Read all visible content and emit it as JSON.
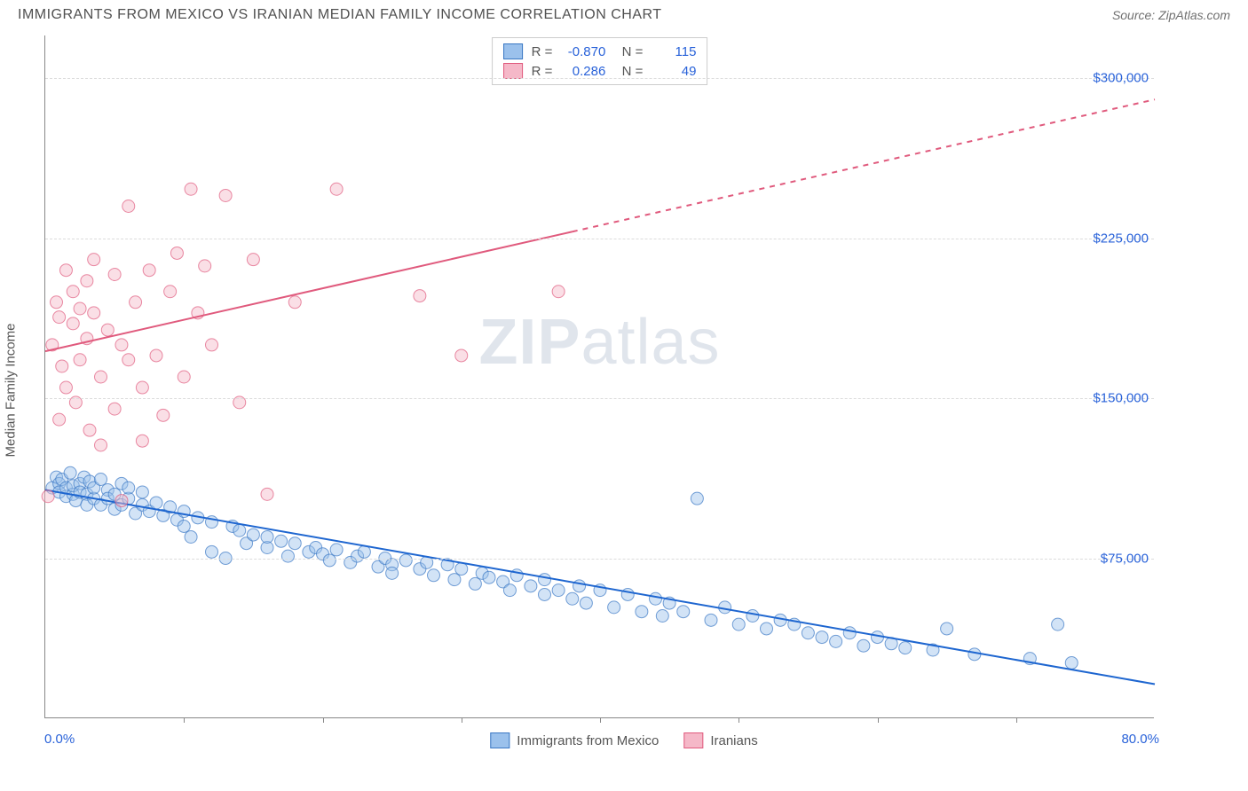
{
  "header": {
    "title": "IMMIGRANTS FROM MEXICO VS IRANIAN MEDIAN FAMILY INCOME CORRELATION CHART",
    "source": "Source: ZipAtlas.com"
  },
  "chart": {
    "type": "scatter",
    "watermark_bold": "ZIP",
    "watermark_light": "atlas",
    "ylabel": "Median Family Income",
    "xlim": [
      0,
      80
    ],
    "ylim": [
      0,
      320000
    ],
    "xmin_label": "0.0%",
    "xmax_label": "80.0%",
    "ytick_values": [
      75000,
      150000,
      225000,
      300000
    ],
    "ytick_labels": [
      "$75,000",
      "$150,000",
      "$225,000",
      "$300,000"
    ],
    "xtick_positions": [
      10,
      20,
      30,
      40,
      50,
      60,
      70
    ],
    "grid_color": "#dcdcdc",
    "background_color": "#ffffff",
    "marker_radius": 7,
    "marker_opacity": 0.45,
    "line_width": 2,
    "series": [
      {
        "name": "Immigrants from Mexico",
        "fill_color": "#9bc1ec",
        "stroke_color": "#3b78c4",
        "line_color": "#1e66d0",
        "R": "-0.870",
        "N": "115",
        "trend": {
          "x1": 0,
          "y1": 107000,
          "x2": 80,
          "y2": 16000,
          "dashed_from_x": 80
        },
        "points": [
          [
            0.5,
            108000
          ],
          [
            0.8,
            113000
          ],
          [
            1,
            110000
          ],
          [
            1,
            106000
          ],
          [
            1.2,
            112000
          ],
          [
            1.5,
            104000
          ],
          [
            1.5,
            108000
          ],
          [
            1.8,
            115000
          ],
          [
            2,
            105000
          ],
          [
            2,
            109000
          ],
          [
            2.2,
            102000
          ],
          [
            2.5,
            110000
          ],
          [
            2.5,
            106000
          ],
          [
            2.8,
            113000
          ],
          [
            3,
            105000
          ],
          [
            3,
            100000
          ],
          [
            3.2,
            111000
          ],
          [
            3.5,
            103000
          ],
          [
            3.5,
            108000
          ],
          [
            4,
            112000
          ],
          [
            4,
            100000
          ],
          [
            4.5,
            107000
          ],
          [
            4.5,
            103000
          ],
          [
            5,
            105000
          ],
          [
            5,
            98000
          ],
          [
            5.5,
            110000
          ],
          [
            5.5,
            100000
          ],
          [
            6,
            103000
          ],
          [
            6,
            108000
          ],
          [
            6.5,
            96000
          ],
          [
            7,
            106000
          ],
          [
            7,
            100000
          ],
          [
            7.5,
            97000
          ],
          [
            8,
            101000
          ],
          [
            8.5,
            95000
          ],
          [
            9,
            99000
          ],
          [
            9.5,
            93000
          ],
          [
            10,
            97000
          ],
          [
            10,
            90000
          ],
          [
            10.5,
            85000
          ],
          [
            11,
            94000
          ],
          [
            12,
            92000
          ],
          [
            12,
            78000
          ],
          [
            13,
            75000
          ],
          [
            13.5,
            90000
          ],
          [
            14,
            88000
          ],
          [
            14.5,
            82000
          ],
          [
            15,
            86000
          ],
          [
            16,
            80000
          ],
          [
            16,
            85000
          ],
          [
            17,
            83000
          ],
          [
            17.5,
            76000
          ],
          [
            18,
            82000
          ],
          [
            19,
            78000
          ],
          [
            19.5,
            80000
          ],
          [
            20,
            77000
          ],
          [
            20.5,
            74000
          ],
          [
            21,
            79000
          ],
          [
            22,
            73000
          ],
          [
            22.5,
            76000
          ],
          [
            23,
            78000
          ],
          [
            24,
            71000
          ],
          [
            24.5,
            75000
          ],
          [
            25,
            72000
          ],
          [
            25,
            68000
          ],
          [
            26,
            74000
          ],
          [
            27,
            70000
          ],
          [
            27.5,
            73000
          ],
          [
            28,
            67000
          ],
          [
            29,
            72000
          ],
          [
            29.5,
            65000
          ],
          [
            30,
            70000
          ],
          [
            31,
            63000
          ],
          [
            31.5,
            68000
          ],
          [
            32,
            66000
          ],
          [
            33,
            64000
          ],
          [
            33.5,
            60000
          ],
          [
            34,
            67000
          ],
          [
            35,
            62000
          ],
          [
            36,
            58000
          ],
          [
            36,
            65000
          ],
          [
            37,
            60000
          ],
          [
            38,
            56000
          ],
          [
            38.5,
            62000
          ],
          [
            39,
            54000
          ],
          [
            40,
            60000
          ],
          [
            41,
            52000
          ],
          [
            42,
            58000
          ],
          [
            43,
            50000
          ],
          [
            44,
            56000
          ],
          [
            44.5,
            48000
          ],
          [
            45,
            54000
          ],
          [
            46,
            50000
          ],
          [
            47,
            103000
          ],
          [
            48,
            46000
          ],
          [
            49,
            52000
          ],
          [
            50,
            44000
          ],
          [
            51,
            48000
          ],
          [
            52,
            42000
          ],
          [
            53,
            46000
          ],
          [
            54,
            44000
          ],
          [
            55,
            40000
          ],
          [
            56,
            38000
          ],
          [
            57,
            36000
          ],
          [
            58,
            40000
          ],
          [
            59,
            34000
          ],
          [
            60,
            38000
          ],
          [
            61,
            35000
          ],
          [
            62,
            33000
          ],
          [
            64,
            32000
          ],
          [
            65,
            42000
          ],
          [
            67,
            30000
          ],
          [
            71,
            28000
          ],
          [
            73,
            44000
          ],
          [
            74,
            26000
          ]
        ]
      },
      {
        "name": "Iranians",
        "fill_color": "#f5b8c8",
        "stroke_color": "#e05a7d",
        "line_color": "#e05a7d",
        "R": "0.286",
        "N": "49",
        "trend": {
          "x1": 0,
          "y1": 172000,
          "x2": 80,
          "y2": 290000,
          "dashed_from_x": 38
        },
        "points": [
          [
            0.2,
            104000
          ],
          [
            0.5,
            175000
          ],
          [
            0.8,
            195000
          ],
          [
            1,
            140000
          ],
          [
            1,
            188000
          ],
          [
            1.2,
            165000
          ],
          [
            1.5,
            210000
          ],
          [
            1.5,
            155000
          ],
          [
            2,
            185000
          ],
          [
            2,
            200000
          ],
          [
            2.2,
            148000
          ],
          [
            2.5,
            192000
          ],
          [
            2.5,
            168000
          ],
          [
            3,
            178000
          ],
          [
            3,
            205000
          ],
          [
            3.2,
            135000
          ],
          [
            3.5,
            190000
          ],
          [
            3.5,
            215000
          ],
          [
            4,
            160000
          ],
          [
            4,
            128000
          ],
          [
            4.5,
            182000
          ],
          [
            5,
            145000
          ],
          [
            5,
            208000
          ],
          [
            5.5,
            175000
          ],
          [
            5.5,
            102000
          ],
          [
            6,
            168000
          ],
          [
            6,
            240000
          ],
          [
            6.5,
            195000
          ],
          [
            7,
            130000
          ],
          [
            7,
            155000
          ],
          [
            7.5,
            210000
          ],
          [
            8,
            170000
          ],
          [
            8.5,
            142000
          ],
          [
            9,
            200000
          ],
          [
            9.5,
            218000
          ],
          [
            10,
            160000
          ],
          [
            10.5,
            248000
          ],
          [
            11,
            190000
          ],
          [
            11.5,
            212000
          ],
          [
            12,
            175000
          ],
          [
            13,
            245000
          ],
          [
            14,
            148000
          ],
          [
            15,
            215000
          ],
          [
            16,
            105000
          ],
          [
            18,
            195000
          ],
          [
            21,
            248000
          ],
          [
            27,
            198000
          ],
          [
            30,
            170000
          ],
          [
            37,
            200000
          ]
        ]
      }
    ],
    "legend_bottom": [
      {
        "label": "Immigrants from Mexico",
        "fill": "#9bc1ec",
        "stroke": "#3b78c4"
      },
      {
        "label": "Iranians",
        "fill": "#f5b8c8",
        "stroke": "#e05a7d"
      }
    ]
  }
}
